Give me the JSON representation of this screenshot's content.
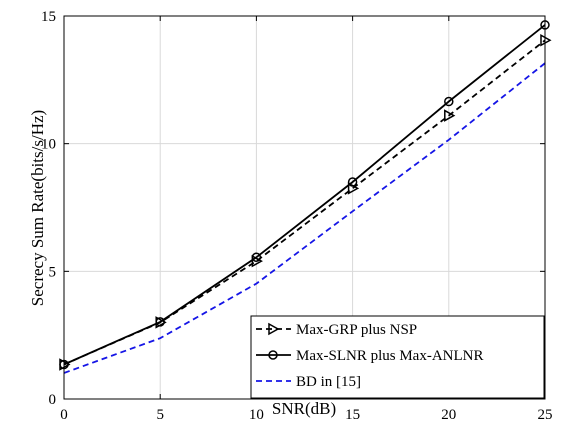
{
  "chart_data": {
    "type": "line",
    "title": "",
    "xlabel": "SNR(dB)",
    "ylabel": "Secrecy Sum Rate(bits/s/Hz)",
    "xlim": [
      0,
      25
    ],
    "ylim": [
      0,
      15
    ],
    "xticks": [
      0,
      5,
      10,
      15,
      20,
      25
    ],
    "yticks": [
      0,
      5,
      10,
      15
    ],
    "grid": true,
    "legend_position": "bottom-right",
    "x": [
      0,
      5,
      10,
      15,
      20,
      25
    ],
    "series": [
      {
        "name": "Max-GRP plus NSP",
        "values": [
          1.35,
          3.0,
          5.4,
          8.25,
          11.1,
          14.05
        ],
        "color": "#000000",
        "dash": "dashed",
        "marker": "triangle-right"
      },
      {
        "name": "Max-SLNR plus Max-ANLNR",
        "values": [
          1.35,
          3.02,
          5.55,
          8.5,
          11.65,
          14.65
        ],
        "color": "#000000",
        "dash": "solid",
        "marker": "circle"
      },
      {
        "name": "BD in [15]",
        "values": [
          1.02,
          2.38,
          4.52,
          7.35,
          10.15,
          13.15
        ],
        "color": "#1515e6",
        "dash": "dashed",
        "marker": "none"
      }
    ]
  }
}
